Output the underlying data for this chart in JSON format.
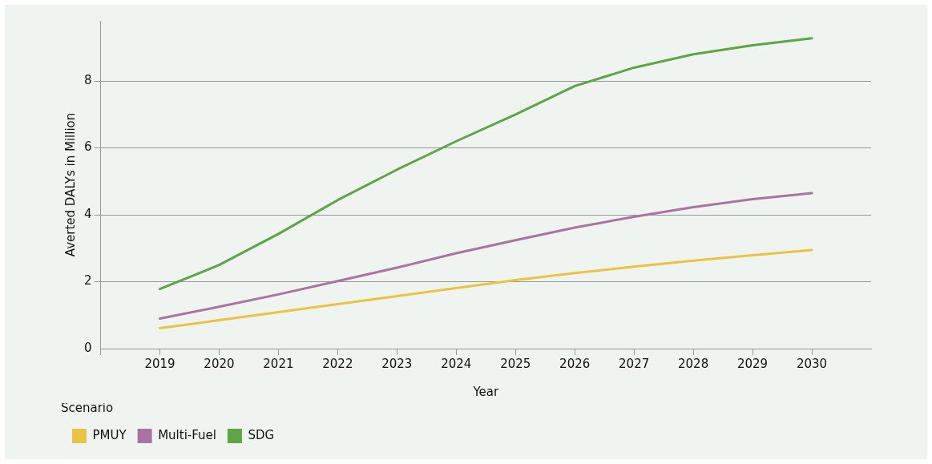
{
  "chart_data": {
    "type": "line",
    "xlabel": "Year",
    "ylabel": "Averted DALYs in Million",
    "legend_title": "Scenario",
    "x": [
      2019,
      2020,
      2021,
      2022,
      2023,
      2024,
      2025,
      2026,
      2027,
      2028,
      2029,
      2030
    ],
    "xlim": [
      2018,
      2031
    ],
    "xticks": [
      {
        "value": 2018,
        "label": null
      },
      2019,
      2020,
      2021,
      2022,
      2023,
      2024,
      2025,
      2026,
      2027,
      2028,
      2029,
      2030
    ],
    "ylim": [
      0,
      9.8
    ],
    "yticks": [
      0,
      2,
      4,
      6,
      8
    ],
    "grid": "y",
    "legend": "bottom left",
    "marker": "none",
    "line_style": "solid",
    "series": [
      {
        "name": "PMUY",
        "color": "#e9c444",
        "values": [
          0.61,
          0.85,
          1.09,
          1.33,
          1.57,
          1.81,
          2.05,
          2.26,
          2.45,
          2.63,
          2.79,
          2.95
        ]
      },
      {
        "name": "Multi-Fuel",
        "color": "#ab74a0",
        "values": [
          0.9,
          1.25,
          1.62,
          2.02,
          2.42,
          2.85,
          3.24,
          3.62,
          3.94,
          4.23,
          4.47,
          4.65
        ]
      },
      {
        "name": "SDG",
        "color": "#5da545",
        "values": [
          1.78,
          2.5,
          3.43,
          4.44,
          5.35,
          6.2,
          7.0,
          7.85,
          8.4,
          8.8,
          9.07,
          9.28
        ]
      }
    ]
  }
}
